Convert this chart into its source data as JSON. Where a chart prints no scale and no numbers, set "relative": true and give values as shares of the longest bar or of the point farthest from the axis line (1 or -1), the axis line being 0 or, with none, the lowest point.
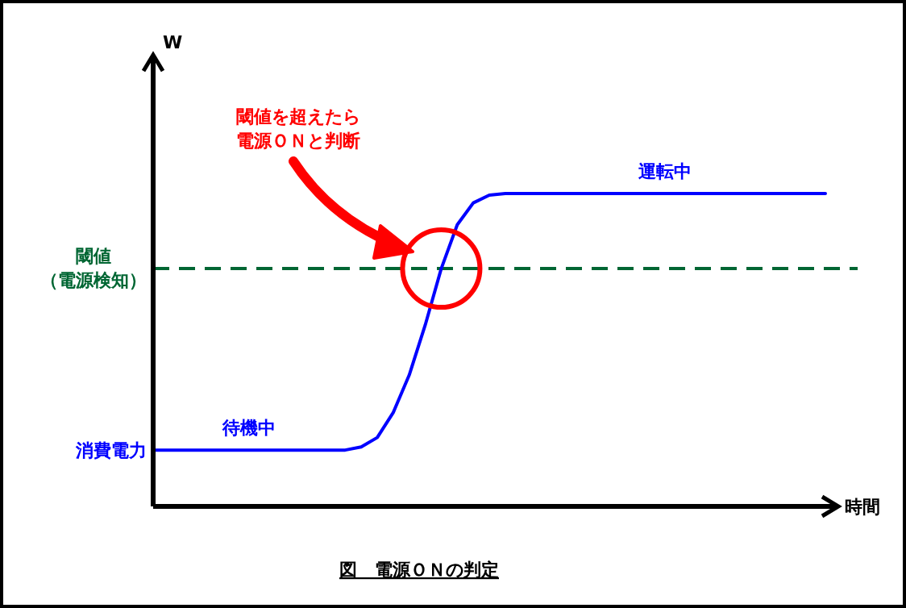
{
  "chart_data": {
    "type": "line",
    "relative": true,
    "title": "図　電源ＯＮの判定",
    "xlabel": "時間",
    "categories": [
      null,
      null,
      null,
      null,
      null,
      null,
      null,
      null,
      null,
      null,
      null,
      null,
      null,
      null,
      null,
      null,
      null,
      null,
      null,
      null,
      null,
      null,
      null,
      null,
      null,
      null,
      null,
      null,
      null,
      null,
      null,
      null,
      null,
      null,
      null,
      null,
      null,
      null,
      null,
      null,
      null,
      null,
      null
    ],
    "series": [
      {
        "color": "#0000ff",
        "values": [
          0.18,
          0.18,
          0.18,
          0.18,
          0.18,
          0.18,
          0.18,
          0.18,
          0.18,
          0.18,
          0.18,
          0.18,
          0.18,
          0.19,
          0.22,
          0.3,
          0.42,
          0.58,
          0.76,
          0.9,
          0.97,
          0.995,
          1,
          1,
          1,
          1,
          1,
          1,
          1,
          1,
          1,
          1,
          1,
          1,
          1,
          1,
          1,
          1,
          1,
          1,
          1,
          1,
          1
        ]
      }
    ],
    "ref_lines": [
      {
        "axis": "y",
        "value": 0.76,
        "label": "閾値（電源検知）",
        "color": "#006633",
        "line_style": "dashed"
      }
    ],
    "annotations": [
      "待機中",
      "運転中",
      "消費電力",
      "閾値を超えたら電源ＯＮと判断",
      "W"
    ],
    "grid": false,
    "marker": "none",
    "line_style": "solid"
  }
}
